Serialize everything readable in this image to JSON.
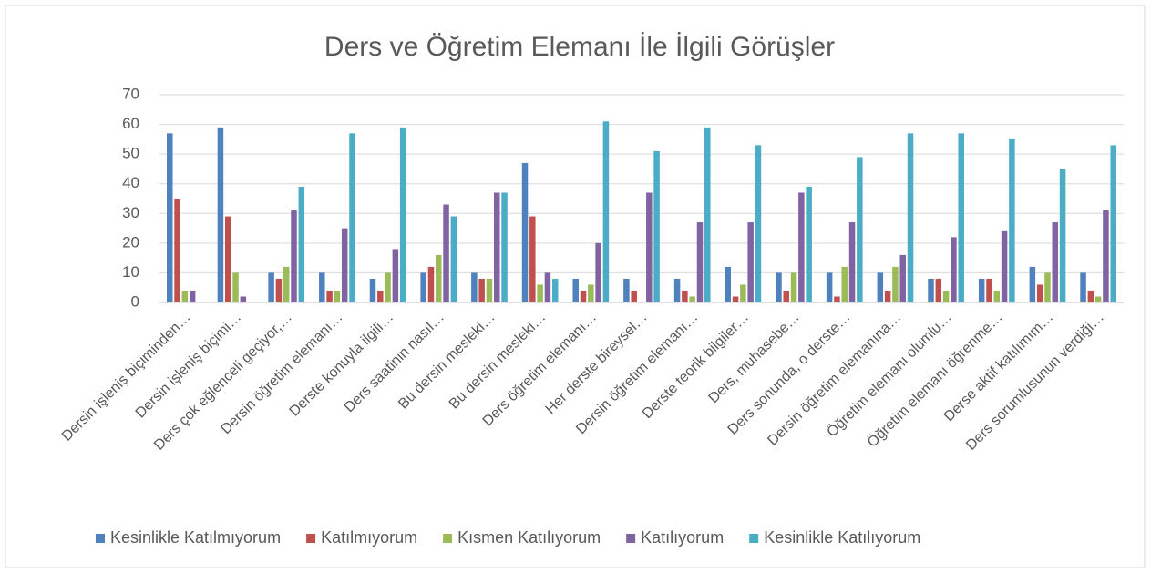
{
  "chart_data": {
    "type": "bar",
    "title": "Ders ve Öğretim Elemanı İle İlgili Görüşler",
    "categories": [
      "Dersin işleniş biçiminden…",
      "Dersin işleniş biçimi…",
      "Ders çok eğlenceli geçiyor,…",
      "Dersin öğretim elemanı…",
      "Derste konuyla ilgili…",
      "Ders saatinin nasıl…",
      "Bu dersin mesleki…",
      "Bu dersin mesleki…",
      "Ders öğretim elemanı…",
      "Her derste bireysel…",
      "Dersin öğretim elemanı…",
      "Derste teorik bilgiler…",
      "Ders, muhasebe…",
      "Ders sonunda, o derste…",
      "Dersin öğretim elemanına…",
      "Öğretim elemanı olumlu…",
      "Öğretim elemanı öğrenme…",
      "Derse aktif katılımım…",
      "Ders sorumlusunun verdiği…"
    ],
    "series": [
      {
        "name": "Kesinlikle Katılmıyorum",
        "color": "#4f81bd",
        "values": [
          57,
          59,
          10,
          10,
          8,
          10,
          10,
          47,
          8,
          8,
          8,
          12,
          10,
          10,
          10,
          8,
          8,
          12,
          10
        ]
      },
      {
        "name": "Katılmıyorum",
        "color": "#c0504d",
        "values": [
          35,
          29,
          8,
          4,
          4,
          12,
          8,
          29,
          4,
          4,
          4,
          2,
          4,
          2,
          4,
          8,
          8,
          6,
          4
        ]
      },
      {
        "name": "Kısmen Katılıyorum",
        "color": "#9bbb59",
        "values": [
          4,
          10,
          12,
          4,
          10,
          16,
          8,
          6,
          6,
          0,
          2,
          6,
          10,
          12,
          12,
          4,
          4,
          10,
          2
        ]
      },
      {
        "name": "Katılıyorum",
        "color": "#8064a2",
        "values": [
          4,
          2,
          31,
          25,
          18,
          33,
          37,
          10,
          20,
          37,
          27,
          27,
          37,
          27,
          16,
          22,
          24,
          27,
          31
        ]
      },
      {
        "name": "Kesinlikle Katılıyorum",
        "color": "#4bacc6",
        "values": [
          0,
          0,
          39,
          57,
          59,
          29,
          37,
          8,
          61,
          51,
          59,
          53,
          39,
          49,
          57,
          57,
          55,
          45,
          53
        ]
      }
    ],
    "ylim": [
      0,
      70
    ],
    "yticks": [
      0,
      10,
      20,
      30,
      40,
      50,
      60,
      70
    ],
    "grid": true,
    "legend": "bottom"
  }
}
